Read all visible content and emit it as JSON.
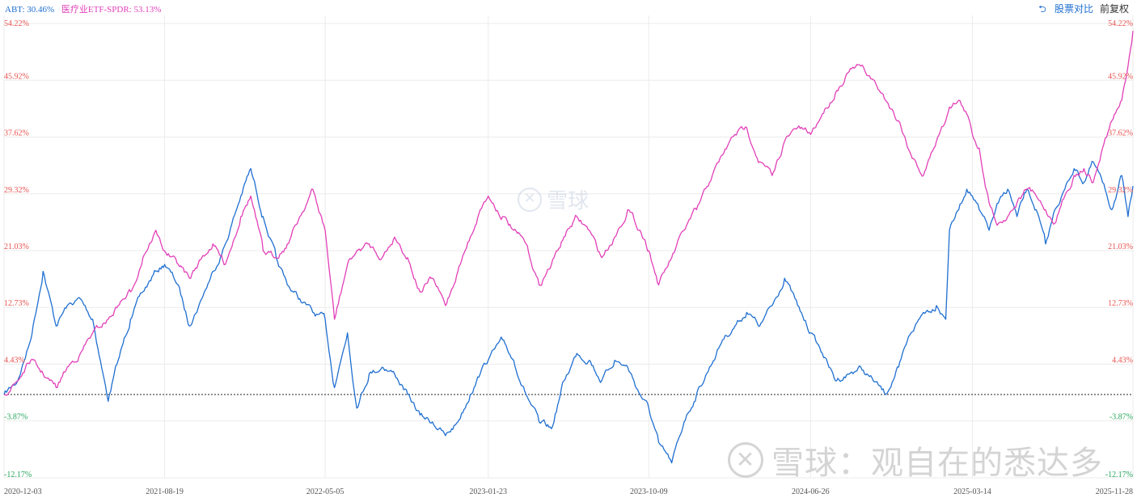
{
  "legend": {
    "series1": "ABT: 30.46%",
    "series2": "医疗业ETF-SPDR: 53.13%"
  },
  "toolbar": {
    "back_icon": "undo-arrow-icon",
    "compare_label": "股票对比",
    "adjust_label": "前复权"
  },
  "watermark": {
    "small_text": "雪球",
    "big_text": "雪球：观自在的悉达多",
    "logo_glyph": "✕"
  },
  "colors": {
    "series1": "#1f6fd1",
    "series2": "#e23fb8",
    "positive_tick": "#e8534f",
    "negative_tick": "#26a65b",
    "grid": "#ebebeb",
    "date_tick": "#555555"
  },
  "chart_data": {
    "type": "line",
    "y_unit": "%",
    "ylim": [
      -12.17,
      54.22
    ],
    "y_ticks": [
      "54.22%",
      "45.92%",
      "37.62%",
      "29.32%",
      "21.03%",
      "12.73%",
      "4.43%",
      "-3.87%",
      "-12.17%"
    ],
    "y_tick_values": [
      54.22,
      45.92,
      37.62,
      29.32,
      21.03,
      12.73,
      4.43,
      -3.87,
      -12.17
    ],
    "x_ticks": [
      "2020-12-03",
      "2021-08-19",
      "2022-05-05",
      "2023-01-23",
      "2023-10-09",
      "2024-06-26",
      "2025-03-14",
      "2025-11-28"
    ],
    "baseline": 0,
    "grid": true,
    "legend_position": "top-left",
    "series": [
      {
        "name": "ABT",
        "color_key": "series1",
        "points": [
          [
            "2020-12-03",
            0
          ],
          [
            "2020-12-25",
            2
          ],
          [
            "2021-01-15",
            8
          ],
          [
            "2021-02-04",
            18
          ],
          [
            "2021-02-25",
            10
          ],
          [
            "2021-03-15",
            13
          ],
          [
            "2021-04-05",
            14
          ],
          [
            "2021-04-25",
            11
          ],
          [
            "2021-05-20",
            -1
          ],
          [
            "2021-06-05",
            5
          ],
          [
            "2021-06-25",
            11
          ],
          [
            "2021-07-15",
            15
          ],
          [
            "2021-08-05",
            18
          ],
          [
            "2021-08-19",
            19
          ],
          [
            "2021-09-10",
            16
          ],
          [
            "2021-09-28",
            10
          ],
          [
            "2021-10-18",
            14
          ],
          [
            "2021-11-05",
            18
          ],
          [
            "2021-11-25",
            22
          ],
          [
            "2021-12-20",
            29
          ],
          [
            "2022-01-05",
            33
          ],
          [
            "2022-01-25",
            26
          ],
          [
            "2022-02-15",
            20
          ],
          [
            "2022-03-05",
            16
          ],
          [
            "2022-03-25",
            14
          ],
          [
            "2022-04-15",
            12
          ],
          [
            "2022-05-05",
            11
          ],
          [
            "2022-05-20",
            1
          ],
          [
            "2022-06-10",
            9
          ],
          [
            "2022-06-25",
            -2
          ],
          [
            "2022-07-15",
            3
          ],
          [
            "2022-08-05",
            4
          ],
          [
            "2022-08-25",
            3
          ],
          [
            "2022-09-15",
            0
          ],
          [
            "2022-10-05",
            -3
          ],
          [
            "2022-10-25",
            -4
          ],
          [
            "2022-11-15",
            -6
          ],
          [
            "2022-12-05",
            -4
          ],
          [
            "2022-12-25",
            0
          ],
          [
            "2023-01-10",
            3
          ],
          [
            "2023-01-23",
            5
          ],
          [
            "2023-02-15",
            8
          ],
          [
            "2023-03-05",
            5
          ],
          [
            "2023-03-25",
            0
          ],
          [
            "2023-04-15",
            -4
          ],
          [
            "2023-05-05",
            -5
          ],
          [
            "2023-05-25",
            2
          ],
          [
            "2023-06-15",
            6
          ],
          [
            "2023-07-05",
            5
          ],
          [
            "2023-07-25",
            2
          ],
          [
            "2023-08-15",
            5
          ],
          [
            "2023-09-05",
            4
          ],
          [
            "2023-09-25",
            0
          ],
          [
            "2023-10-09",
            -2
          ],
          [
            "2023-10-25",
            -7
          ],
          [
            "2023-11-15",
            -10
          ],
          [
            "2023-12-05",
            -4
          ],
          [
            "2023-12-25",
            0
          ],
          [
            "2024-01-15",
            4
          ],
          [
            "2024-02-05",
            8
          ],
          [
            "2024-02-25",
            10
          ],
          [
            "2024-03-15",
            12
          ],
          [
            "2024-04-05",
            10
          ],
          [
            "2024-04-25",
            13
          ],
          [
            "2024-05-15",
            17
          ],
          [
            "2024-06-05",
            13
          ],
          [
            "2024-06-26",
            9
          ],
          [
            "2024-07-15",
            6
          ],
          [
            "2024-08-05",
            2
          ],
          [
            "2024-08-25",
            3
          ],
          [
            "2024-09-15",
            4
          ],
          [
            "2024-10-05",
            2
          ],
          [
            "2024-10-25",
            0
          ],
          [
            "2024-11-15",
            4
          ],
          [
            "2024-12-05",
            9
          ],
          [
            "2024-12-25",
            12
          ],
          [
            "2025-01-15",
            13
          ],
          [
            "2025-01-30",
            11
          ],
          [
            "2025-02-05",
            24
          ],
          [
            "2025-02-20",
            27
          ],
          [
            "2025-03-05",
            30
          ],
          [
            "2025-03-14",
            29
          ],
          [
            "2025-03-25",
            27
          ],
          [
            "2025-04-10",
            24
          ],
          [
            "2025-04-25",
            28
          ],
          [
            "2025-05-10",
            30
          ],
          [
            "2025-05-25",
            26
          ],
          [
            "2025-06-10",
            30
          ],
          [
            "2025-06-25",
            27
          ],
          [
            "2025-07-10",
            22
          ],
          [
            "2025-07-25",
            27
          ],
          [
            "2025-08-10",
            30
          ],
          [
            "2025-08-25",
            33
          ],
          [
            "2025-09-10",
            31
          ],
          [
            "2025-09-25",
            34
          ],
          [
            "2025-10-10",
            31
          ],
          [
            "2025-10-25",
            27
          ],
          [
            "2025-11-10",
            32
          ],
          [
            "2025-11-20",
            26
          ],
          [
            "2025-11-28",
            30.46
          ]
        ]
      },
      {
        "name": "医疗业ETF-SPDR",
        "color_key": "series2",
        "points": [
          [
            "2020-12-03",
            0
          ],
          [
            "2020-12-25",
            2
          ],
          [
            "2021-01-15",
            5
          ],
          [
            "2021-02-04",
            3
          ],
          [
            "2021-02-25",
            1
          ],
          [
            "2021-03-15",
            4
          ],
          [
            "2021-04-05",
            6
          ],
          [
            "2021-04-25",
            9
          ],
          [
            "2021-05-20",
            11
          ],
          [
            "2021-06-05",
            13
          ],
          [
            "2021-06-25",
            15
          ],
          [
            "2021-07-15",
            20
          ],
          [
            "2021-08-05",
            24
          ],
          [
            "2021-08-19",
            21
          ],
          [
            "2021-09-10",
            19
          ],
          [
            "2021-09-28",
            17
          ],
          [
            "2021-10-18",
            20
          ],
          [
            "2021-11-05",
            22
          ],
          [
            "2021-11-25",
            19
          ],
          [
            "2021-12-20",
            26
          ],
          [
            "2022-01-05",
            29
          ],
          [
            "2022-01-25",
            21
          ],
          [
            "2022-02-15",
            20
          ],
          [
            "2022-03-05",
            22
          ],
          [
            "2022-03-25",
            26
          ],
          [
            "2022-04-15",
            30
          ],
          [
            "2022-05-05",
            24
          ],
          [
            "2022-05-20",
            11
          ],
          [
            "2022-06-10",
            19
          ],
          [
            "2022-06-25",
            21
          ],
          [
            "2022-07-15",
            22
          ],
          [
            "2022-08-05",
            20
          ],
          [
            "2022-08-25",
            23
          ],
          [
            "2022-09-15",
            20
          ],
          [
            "2022-10-05",
            15
          ],
          [
            "2022-10-25",
            17
          ],
          [
            "2022-11-15",
            13
          ],
          [
            "2022-12-05",
            18
          ],
          [
            "2022-12-25",
            23
          ],
          [
            "2023-01-10",
            27
          ],
          [
            "2023-01-23",
            29
          ],
          [
            "2023-02-15",
            26
          ],
          [
            "2023-03-05",
            24
          ],
          [
            "2023-03-25",
            22
          ],
          [
            "2023-04-15",
            16
          ],
          [
            "2023-05-05",
            19
          ],
          [
            "2023-05-25",
            23
          ],
          [
            "2023-06-15",
            26
          ],
          [
            "2023-07-05",
            24
          ],
          [
            "2023-07-25",
            20
          ],
          [
            "2023-08-15",
            23
          ],
          [
            "2023-09-05",
            27
          ],
          [
            "2023-09-25",
            24
          ],
          [
            "2023-10-09",
            21
          ],
          [
            "2023-10-25",
            16
          ],
          [
            "2023-11-15",
            20
          ],
          [
            "2023-12-05",
            24
          ],
          [
            "2023-12-25",
            27
          ],
          [
            "2024-01-15",
            31
          ],
          [
            "2024-02-05",
            35
          ],
          [
            "2024-02-25",
            38
          ],
          [
            "2024-03-15",
            39
          ],
          [
            "2024-04-05",
            34
          ],
          [
            "2024-04-25",
            32
          ],
          [
            "2024-05-15",
            37
          ],
          [
            "2024-06-05",
            39
          ],
          [
            "2024-06-26",
            38
          ],
          [
            "2024-07-15",
            41
          ],
          [
            "2024-08-05",
            44
          ],
          [
            "2024-08-25",
            47
          ],
          [
            "2024-09-15",
            48
          ],
          [
            "2024-10-05",
            46
          ],
          [
            "2024-10-25",
            43
          ],
          [
            "2024-11-15",
            40
          ],
          [
            "2024-12-05",
            35
          ],
          [
            "2024-12-25",
            32
          ],
          [
            "2025-01-15",
            37
          ],
          [
            "2025-01-30",
            40
          ],
          [
            "2025-02-05",
            42
          ],
          [
            "2025-02-20",
            43
          ],
          [
            "2025-03-05",
            41
          ],
          [
            "2025-03-14",
            38
          ],
          [
            "2025-03-25",
            36
          ],
          [
            "2025-04-10",
            28
          ],
          [
            "2025-04-25",
            25
          ],
          [
            "2025-05-10",
            26
          ],
          [
            "2025-05-25",
            28
          ],
          [
            "2025-06-10",
            30
          ],
          [
            "2025-06-25",
            29
          ],
          [
            "2025-07-10",
            27
          ],
          [
            "2025-07-25",
            25
          ],
          [
            "2025-08-10",
            29
          ],
          [
            "2025-08-25",
            32
          ],
          [
            "2025-09-10",
            33
          ],
          [
            "2025-09-25",
            31
          ],
          [
            "2025-10-10",
            36
          ],
          [
            "2025-10-25",
            40
          ],
          [
            "2025-11-10",
            43
          ],
          [
            "2025-11-20",
            48
          ],
          [
            "2025-11-28",
            53.13
          ]
        ]
      }
    ]
  }
}
